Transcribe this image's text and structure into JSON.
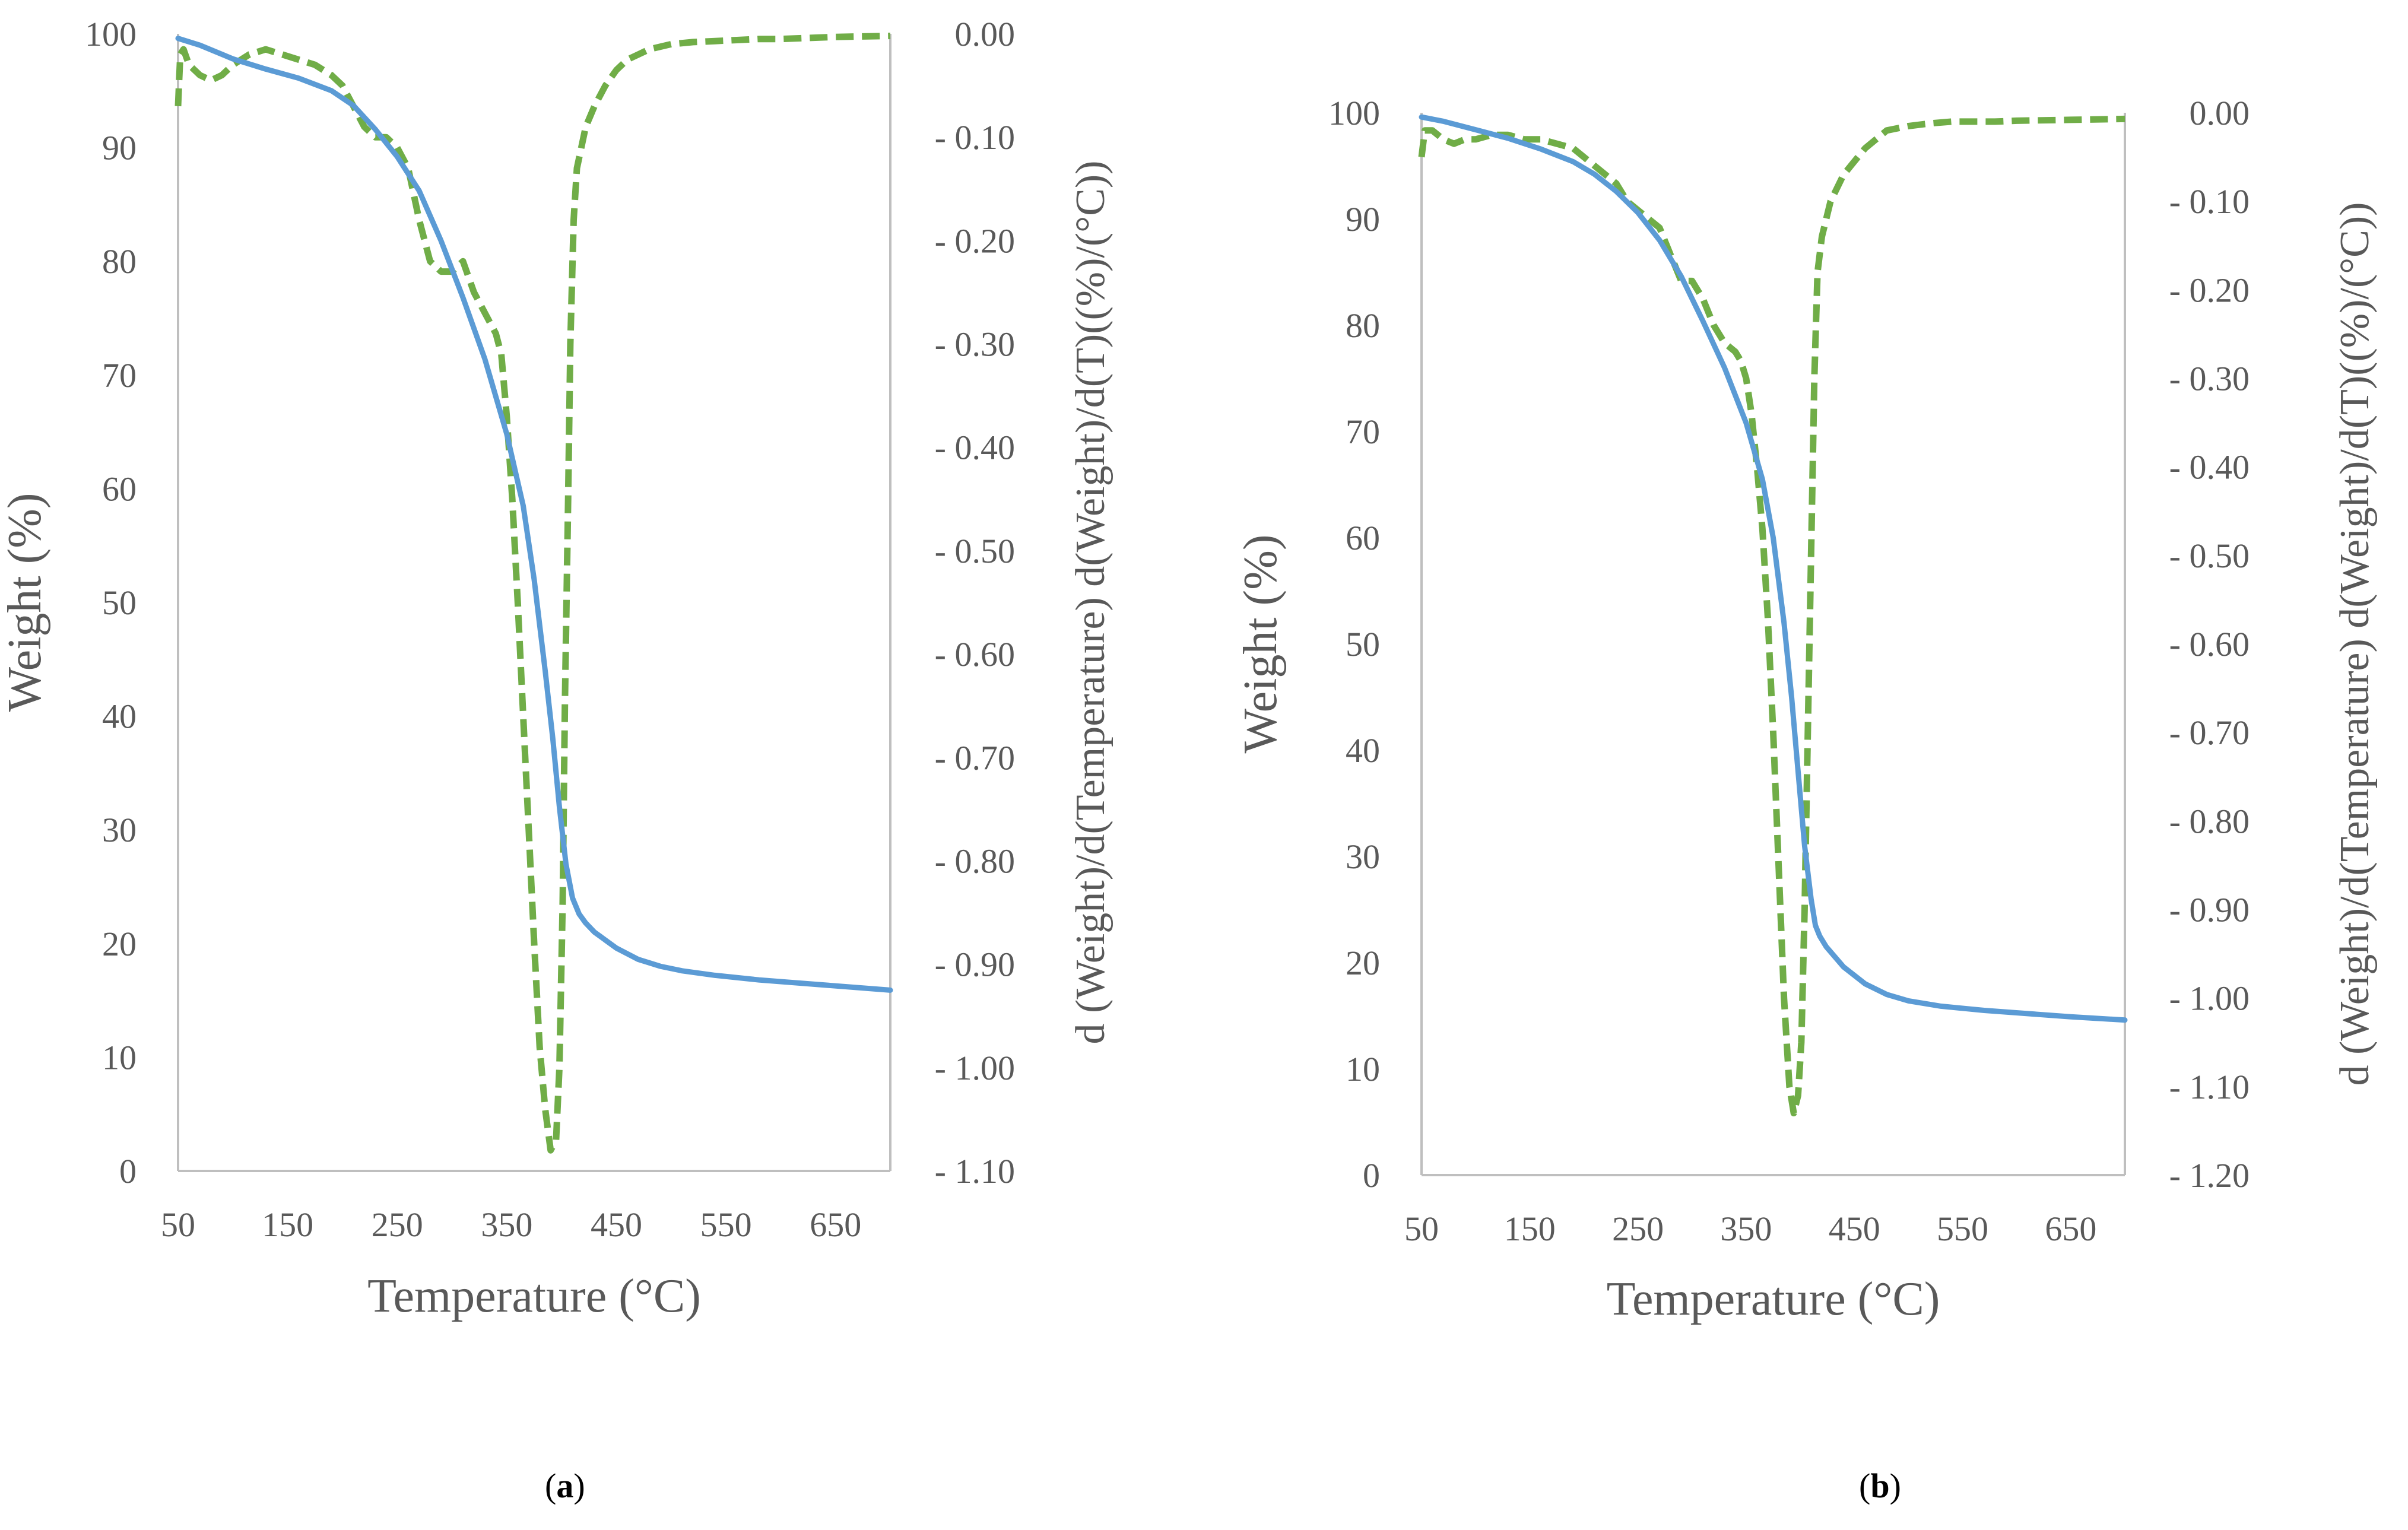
{
  "chart_data": [
    {
      "type": "line",
      "panel_label": "a",
      "xlabel": "Temperature (°C)",
      "ylabel": "Weight (%)",
      "y2label": "d (Weight)/d(Temperature) d(Weight)/d(T)((%)/(°C))",
      "xlim": [
        50,
        700
      ],
      "xticks": [
        50,
        150,
        250,
        350,
        450,
        550,
        650
      ],
      "xtick_labels": [
        "50",
        "150",
        "250",
        "350",
        "450",
        "550",
        "650"
      ],
      "ylim": [
        0,
        100
      ],
      "yticks": [
        0,
        10,
        20,
        30,
        40,
        50,
        60,
        70,
        80,
        90,
        100
      ],
      "ytick_labels": [
        "0",
        "10",
        "20",
        "30",
        "40",
        "50",
        "60",
        "70",
        "80",
        "90",
        "100"
      ],
      "y2lim": [
        -1.1,
        0.0
      ],
      "y2ticks": [
        0.0,
        -0.1,
        -0.2,
        -0.3,
        -0.4,
        -0.5,
        -0.6,
        -0.7,
        -0.8,
        -0.9,
        -1.0,
        -1.1
      ],
      "y2tick_labels": [
        "0.00",
        "- 0.10",
        "- 0.20",
        "- 0.30",
        "- 0.40",
        "- 0.50",
        "- 0.60",
        "- 0.70",
        "- 0.80",
        "- 0.90",
        "- 1.00",
        "- 1.10"
      ],
      "grid": false,
      "series": [
        {
          "name": "Weight",
          "axis": "left",
          "color": "#5b9bd5",
          "style": "solid",
          "x": [
            50,
            70,
            100,
            130,
            160,
            190,
            210,
            230,
            250,
            270,
            290,
            310,
            330,
            350,
            365,
            375,
            385,
            392,
            398,
            404,
            410,
            416,
            422,
            430,
            450,
            470,
            490,
            510,
            540,
            580,
            620,
            660,
            700
          ],
          "y": [
            99.6,
            99,
            97.8,
            96.9,
            96.1,
            95,
            93.7,
            91.6,
            89.2,
            86.2,
            81.8,
            76.8,
            71.4,
            64.8,
            58.5,
            52,
            44,
            38,
            32,
            27,
            24,
            22.6,
            21.8,
            21,
            19.6,
            18.6,
            18,
            17.6,
            17.2,
            16.8,
            16.5,
            16.2,
            15.9
          ]
        },
        {
          "name": "d(Weight)/d(Temperature)",
          "axis": "right",
          "color": "#70ad47",
          "style": "dashed",
          "x": [
            50,
            52,
            55,
            60,
            70,
            80,
            90,
            100,
            115,
            130,
            145,
            160,
            175,
            190,
            200,
            210,
            220,
            230,
            240,
            250,
            260,
            270,
            280,
            290,
            300,
            310,
            320,
            330,
            340,
            345,
            350,
            355,
            360,
            365,
            370,
            375,
            380,
            385,
            390,
            395,
            398,
            401,
            403,
            406,
            408,
            411,
            414,
            418,
            422,
            426,
            430,
            440,
            450,
            460,
            470,
            480,
            500,
            520,
            540,
            560,
            580,
            600,
            650,
            700
          ],
          "y": [
            -0.07,
            -0.02,
            -0.015,
            -0.03,
            -0.04,
            -0.045,
            -0.04,
            -0.03,
            -0.02,
            -0.015,
            -0.02,
            -0.025,
            -0.03,
            -0.04,
            -0.05,
            -0.07,
            -0.09,
            -0.1,
            -0.1,
            -0.11,
            -0.13,
            -0.18,
            -0.22,
            -0.23,
            -0.23,
            -0.22,
            -0.25,
            -0.27,
            -0.29,
            -0.31,
            -0.37,
            -0.45,
            -0.55,
            -0.66,
            -0.77,
            -0.88,
            -0.98,
            -1.04,
            -1.08,
            -1.07,
            -1.0,
            -0.84,
            -0.65,
            -0.45,
            -0.3,
            -0.18,
            -0.13,
            -0.11,
            -0.09,
            -0.08,
            -0.07,
            -0.05,
            -0.035,
            -0.025,
            -0.02,
            -0.015,
            -0.01,
            -0.008,
            -0.007,
            -0.006,
            -0.005,
            -0.005,
            -0.003,
            -0.002
          ]
        }
      ]
    },
    {
      "type": "line",
      "panel_label": "b",
      "xlabel": "Temperature (°C)",
      "ylabel": "Weight (%)",
      "y2label": "d (Weight)/d(Temperature) d(Weight)/d(T)((%)/(°C))",
      "xlim": [
        50,
        700
      ],
      "xticks": [
        50,
        150,
        250,
        350,
        450,
        550,
        650
      ],
      "xtick_labels": [
        "50",
        "150",
        "250",
        "350",
        "450",
        "550",
        "650"
      ],
      "ylim": [
        0,
        100
      ],
      "yticks": [
        0,
        10,
        20,
        30,
        40,
        50,
        60,
        70,
        80,
        90,
        100
      ],
      "ytick_labels": [
        "0",
        "10",
        "20",
        "30",
        "40",
        "50",
        "60",
        "70",
        "80",
        "90",
        "100"
      ],
      "y2lim": [
        -1.2,
        0.0
      ],
      "y2ticks": [
        0.0,
        -0.1,
        -0.2,
        -0.3,
        -0.4,
        -0.5,
        -0.6,
        -0.7,
        -0.8,
        -0.9,
        -1.0,
        -1.1,
        -1.2
      ],
      "y2tick_labels": [
        "0.00",
        "- 0.10",
        "- 0.20",
        "- 0.30",
        "- 0.40",
        "- 0.50",
        "- 0.60",
        "- 0.70",
        "- 0.80",
        "- 0.90",
        "- 1.00",
        "- 1.10",
        "- 1.20"
      ],
      "grid": false,
      "series": [
        {
          "name": "Weight",
          "axis": "left",
          "color": "#5b9bd5",
          "style": "solid",
          "x": [
            50,
            70,
            100,
            130,
            160,
            190,
            210,
            230,
            250,
            270,
            290,
            310,
            330,
            350,
            365,
            375,
            385,
            392,
            398,
            404,
            410,
            414,
            418,
            424,
            440,
            460,
            480,
            500,
            530,
            570,
            610,
            650,
            700
          ],
          "y": [
            99.6,
            99.2,
            98.4,
            97.6,
            96.6,
            95.4,
            94.2,
            92.6,
            90.6,
            88,
            84.6,
            80.4,
            76,
            70.8,
            65.5,
            60,
            52,
            45,
            38,
            31,
            26,
            23.5,
            22.5,
            21.5,
            19.6,
            18,
            17,
            16.4,
            15.9,
            15.5,
            15.2,
            14.9,
            14.6
          ]
        },
        {
          "name": "d(Weight)/d(Temperature)",
          "axis": "right",
          "color": "#70ad47",
          "style": "dashed",
          "x": [
            50,
            53,
            60,
            70,
            80,
            90,
            100,
            115,
            130,
            145,
            160,
            175,
            190,
            200,
            210,
            220,
            230,
            240,
            250,
            260,
            270,
            280,
            290,
            300,
            310,
            320,
            330,
            340,
            345,
            350,
            355,
            360,
            365,
            370,
            375,
            380,
            385,
            390,
            394,
            398,
            401,
            404,
            407,
            410,
            413,
            416,
            420,
            424,
            428,
            432,
            440,
            450,
            460,
            470,
            480,
            500,
            520,
            540,
            560,
            580,
            600,
            650,
            700
          ],
          "y": [
            -0.05,
            -0.02,
            -0.02,
            -0.03,
            -0.035,
            -0.03,
            -0.03,
            -0.025,
            -0.025,
            -0.03,
            -0.03,
            -0.035,
            -0.04,
            -0.05,
            -0.06,
            -0.07,
            -0.08,
            -0.1,
            -0.11,
            -0.12,
            -0.13,
            -0.16,
            -0.19,
            -0.19,
            -0.21,
            -0.24,
            -0.26,
            -0.27,
            -0.28,
            -0.3,
            -0.34,
            -0.4,
            -0.47,
            -0.57,
            -0.7,
            -0.85,
            -1.0,
            -1.1,
            -1.13,
            -1.11,
            -1.05,
            -0.9,
            -0.7,
            -0.5,
            -0.3,
            -0.18,
            -0.14,
            -0.12,
            -0.1,
            -0.09,
            -0.07,
            -0.055,
            -0.04,
            -0.03,
            -0.02,
            -0.015,
            -0.012,
            -0.01,
            -0.01,
            -0.01,
            -0.009,
            -0.008,
            -0.007
          ]
        }
      ]
    }
  ]
}
